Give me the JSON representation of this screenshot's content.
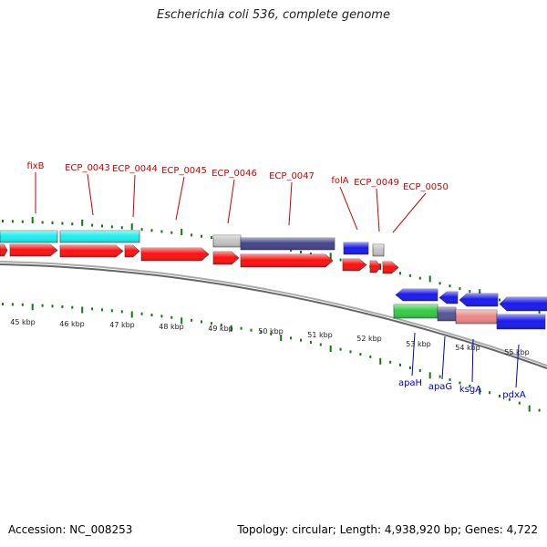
{
  "title": "Escherichia coli 536, complete genome",
  "footer": {
    "accession": "Accession: NC_008253",
    "summary": "Topology: circular; Length: 4,938,920 bp; Genes: 4,722"
  },
  "colors": {
    "top_label": "#cc0000",
    "bottom_label": "#0000cc",
    "tick": "#117711",
    "backbone": "#888888",
    "red": "#ff1111",
    "cyan": "#22eeee",
    "blue": "#1a1aee",
    "navy": "#44448a",
    "gray": "#c4c4c4",
    "green": "#33cc44",
    "salmon": "#ee8888",
    "purple": "#555599"
  },
  "kbp_labels": [
    "45 kbp",
    "46 kbp",
    "47 kbp",
    "48 kbp",
    "49 kbp",
    "50 kbp",
    "51 kbp",
    "52 kbp",
    "53 kbp",
    "54 kbp",
    "55 kbp"
  ],
  "top_gene_labels": [
    "fixB",
    "ECP_0043",
    "ECP_0044",
    "ECP_0045",
    "ECP_0046",
    "ECP_0047",
    "folA",
    "ECP_0049",
    "ECP_0050"
  ],
  "bottom_gene_labels": [
    "apaH",
    "apaG",
    "ksgA",
    "pdxA"
  ]
}
